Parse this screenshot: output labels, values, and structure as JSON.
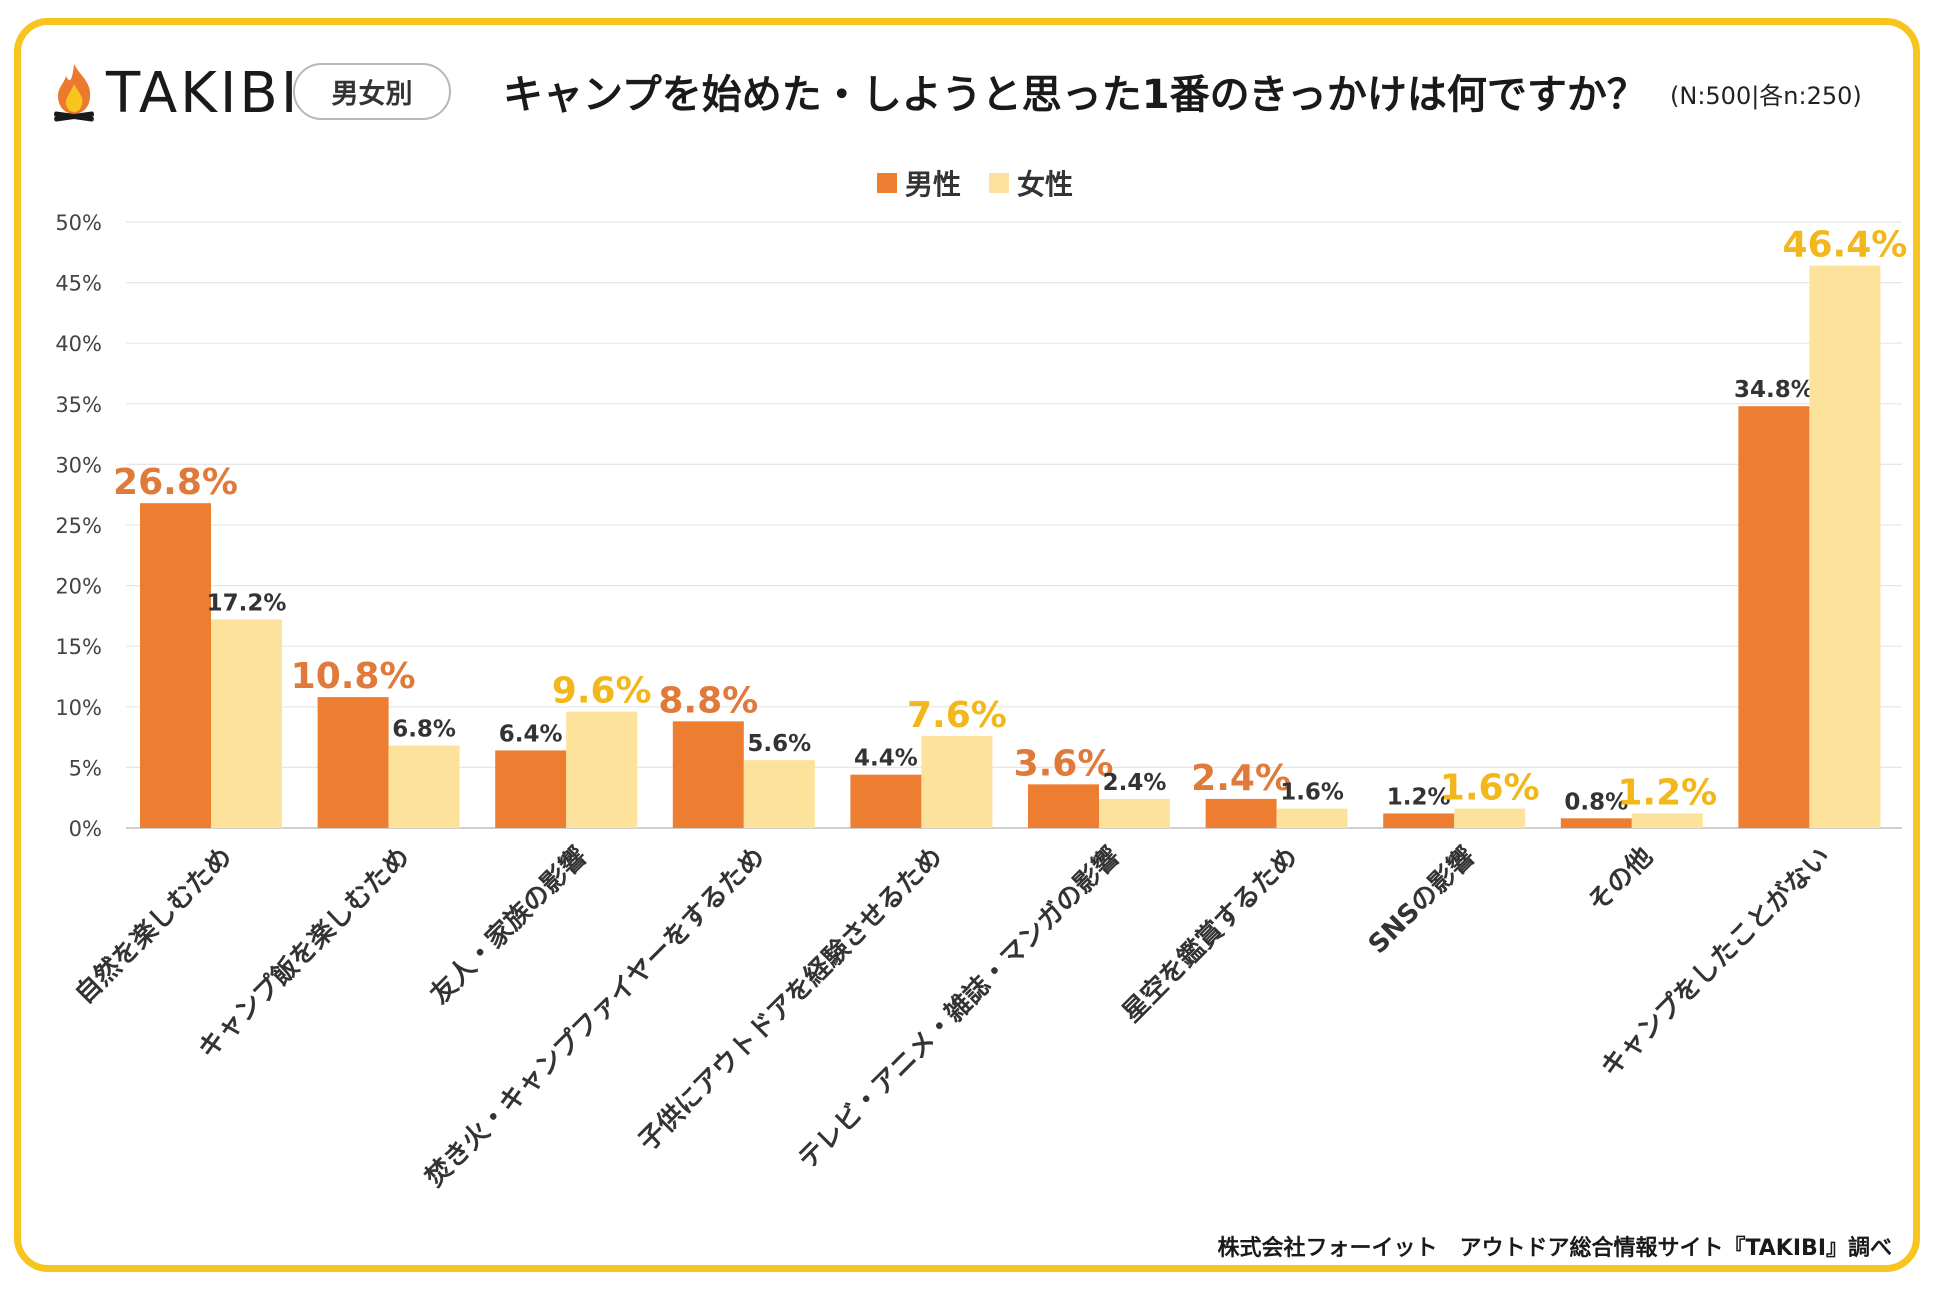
{
  "brand": {
    "name": "TAKIBI",
    "icon": "flame-logo-icon"
  },
  "header": {
    "badge": "男女別",
    "title": "キャンプを始めた・しようと思った1番のきっかけは何ですか？",
    "sample": "(N:500|各n:250)"
  },
  "footer": {
    "credit": "株式会社フォーイット　アウトドア総合情報サイト『TAKIBI』調べ"
  },
  "colors": {
    "male": "#ed7d31",
    "female": "#fde29b",
    "male_highlight": "#e07a3a",
    "female_highlight": "#f2b81b",
    "label_plain": "#333333",
    "grid": "#e6e6e6",
    "frame": "#f7c51e"
  },
  "chart_data": {
    "type": "bar",
    "title": "キャンプを始めた・しようと思った1番のきっかけは何ですか？",
    "xlabel": "",
    "ylabel": "",
    "ylim": [
      0,
      50
    ],
    "y_ticks": [
      "0%",
      "5%",
      "10%",
      "15%",
      "20%",
      "25%",
      "30%",
      "35%",
      "40%",
      "45%",
      "50%"
    ],
    "y_tick_values": [
      0,
      5,
      10,
      15,
      20,
      25,
      30,
      35,
      40,
      45,
      50
    ],
    "grid": true,
    "legend_position": "top-center",
    "categories": [
      "自然を楽しむため",
      "キャンプ飯を楽しむため",
      "友人・家族の影響",
      "焚き火・キャンプファイヤーをするため",
      "子供にアウトドアを経験させるため",
      "テレビ・アニメ・雑誌・マンガの影響",
      "星空を鑑賞するため",
      "SNSの影響",
      "その他",
      "キャンプをしたことがない"
    ],
    "series": [
      {
        "name": "男性",
        "values": [
          26.8,
          10.8,
          6.4,
          8.8,
          4.4,
          3.6,
          2.4,
          1.2,
          0.8,
          34.8
        ],
        "labels": [
          "26.8%",
          "10.8%",
          "6.4%",
          "8.8%",
          "4.4%",
          "3.6%",
          "2.4%",
          "1.2%",
          "0.8%",
          "34.8%"
        ],
        "highlighted": [
          true,
          true,
          false,
          true,
          false,
          true,
          true,
          false,
          false,
          false
        ]
      },
      {
        "name": "女性",
        "values": [
          17.2,
          6.8,
          9.6,
          5.6,
          7.6,
          2.4,
          1.6,
          1.6,
          1.2,
          46.4
        ],
        "labels": [
          "17.2%",
          "6.8%",
          "9.6%",
          "5.6%",
          "7.6%",
          "2.4%",
          "1.6%",
          "1.6%",
          "1.2%",
          "46.4%"
        ],
        "highlighted": [
          false,
          false,
          true,
          false,
          true,
          false,
          false,
          true,
          true,
          true
        ]
      }
    ]
  }
}
